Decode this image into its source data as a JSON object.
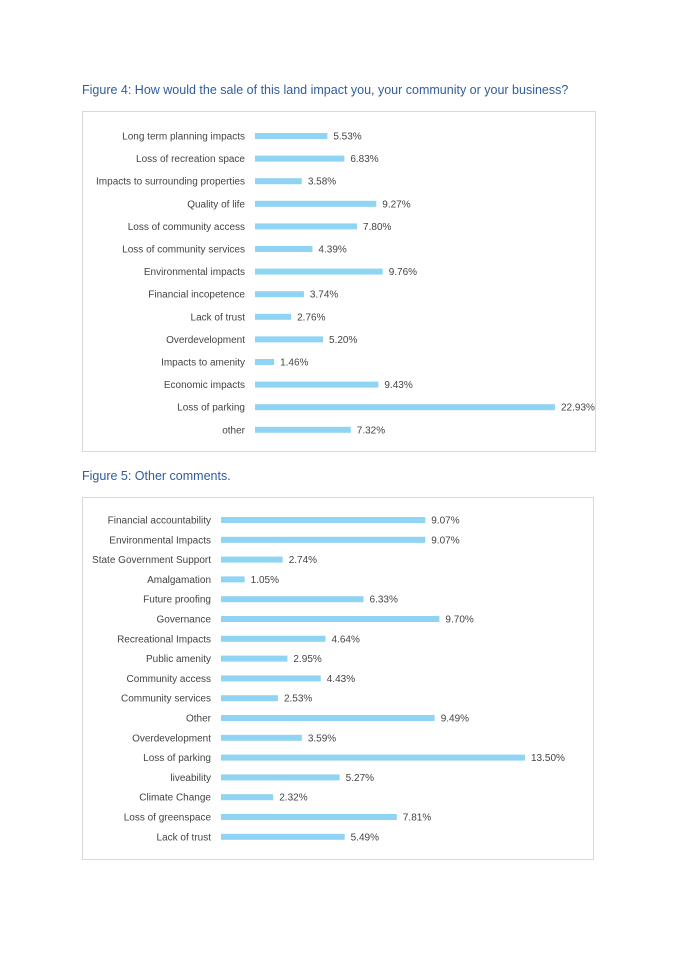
{
  "captions": {
    "figure4": "Figure 4: How would the sale of this land impact you, your community or your business?",
    "figure5": "Figure 5: Other comments."
  },
  "colors": {
    "bar": "#8fd4f2",
    "caption": "#2f5d9b",
    "text": "#444444"
  },
  "chart_data": [
    {
      "type": "bar",
      "orientation": "horizontal",
      "title": "Figure 4: How would the sale of this land impact you, your community or your business?",
      "categories": [
        "Long term planning impacts",
        "Loss of recreation space",
        "Impacts to surrounding properties",
        "Quality of life",
        "Loss of community access",
        "Loss of community services",
        "Environmental impacts",
        "Financial incopetence",
        "Lack of trust",
        "Overdevelopment",
        "Impacts to amenity",
        "Economic impacts",
        "Loss of parking",
        "other"
      ],
      "values": [
        5.53,
        6.83,
        3.58,
        9.27,
        7.8,
        4.39,
        9.76,
        3.74,
        2.76,
        5.2,
        1.46,
        9.43,
        22.93,
        7.32
      ],
      "value_labels": [
        "5.53%",
        "6.83%",
        "3.58%",
        "9.27%",
        "7.80%",
        "4.39%",
        "9.76%",
        "3.74%",
        "2.76%",
        "5.20%",
        "1.46%",
        "9.43%",
        "22.93%",
        "7.32%"
      ],
      "xlim": [
        0,
        22.93
      ],
      "grid": false,
      "legend": "none"
    },
    {
      "type": "bar",
      "orientation": "horizontal",
      "title": "Figure 5: Other comments.",
      "categories": [
        "Financial accountability",
        "Environmental Impacts",
        "State Government Support",
        "Amalgamation",
        "Future proofing",
        "Governance",
        "Recreational Impacts",
        "Public amenity",
        "Community access",
        "Community services",
        "Other",
        "Overdevelopment",
        "Loss of parking",
        "liveability",
        "Climate Change",
        "Loss of greenspace",
        "Lack of trust"
      ],
      "values": [
        9.07,
        9.07,
        2.74,
        1.05,
        6.33,
        9.7,
        4.64,
        2.95,
        4.43,
        2.53,
        9.49,
        3.59,
        13.5,
        5.27,
        2.32,
        7.81,
        5.49
      ],
      "value_labels": [
        "9.07%",
        "9.07%",
        "2.74%",
        "1.05%",
        "6.33%",
        "9.70%",
        "4.64%",
        "2.95%",
        "4.43%",
        "2.53%",
        "9.49%",
        "3.59%",
        "13.50%",
        "5.27%",
        "2.32%",
        "7.81%",
        "5.49%"
      ],
      "xlim": [
        0,
        13.5
      ],
      "grid": false,
      "legend": "none"
    }
  ]
}
